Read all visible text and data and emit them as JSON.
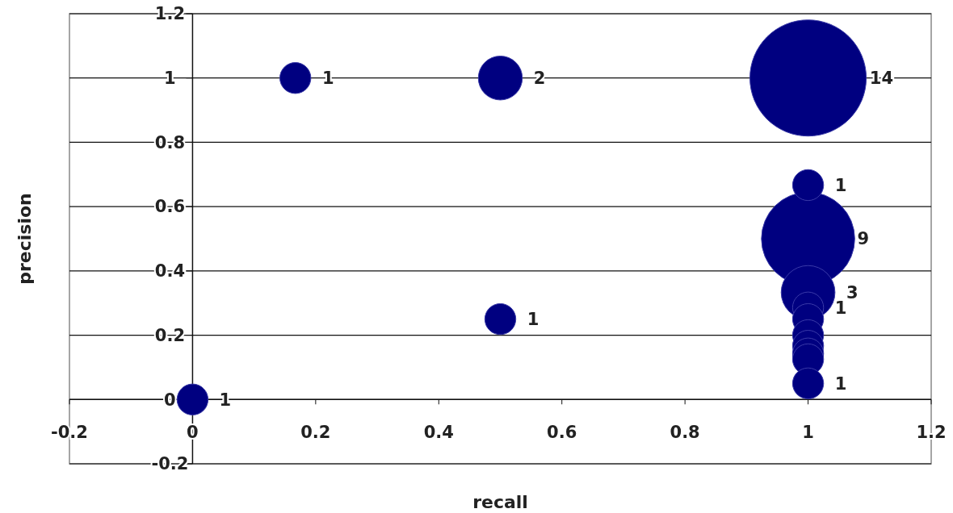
{
  "chart_data": {
    "type": "bubble",
    "xlabel": "recall",
    "ylabel": "precision",
    "x": [
      0,
      0.167,
      0.5,
      1,
      1,
      1,
      1,
      1,
      1,
      1,
      1,
      1,
      1,
      0.5,
      1
    ],
    "values": [
      0,
      1,
      1,
      1,
      0.667,
      0.5,
      0.333,
      0.286,
      0.25,
      0.2,
      0.167,
      0.143,
      0.125,
      0.25,
      0.05
    ],
    "sizes": [
      0.071,
      0.071,
      0.143,
      1,
      0.071,
      0.643,
      0.214,
      0.071,
      0.071,
      0.071,
      0.071,
      0.071,
      0.071,
      0.071,
      0.071
    ],
    "annotations": [
      {
        "text": "1",
        "x": 0,
        "y": 0
      },
      {
        "text": "1",
        "x": 0.167,
        "y": 1
      },
      {
        "text": "2",
        "x": 0.5,
        "y": 1
      },
      {
        "text": "14",
        "x": 1.1,
        "y": 1
      },
      {
        "text": "1",
        "x": 1,
        "y": 0.667
      },
      {
        "text": "9",
        "x": 1.08,
        "y": 0.5
      },
      {
        "text": "3",
        "x": 1,
        "y": 0.333
      },
      {
        "text": "1",
        "x": 1,
        "y": 0.286
      },
      {
        "text": "1",
        "x": 0.5,
        "y": 0.25
      },
      {
        "text": "1",
        "x": 1,
        "y": 0.05
      }
    ],
    "color": "#000080",
    "xlim": [
      -0.2,
      1.2
    ],
    "xticks": [
      -0.2,
      0,
      0.2,
      0.4,
      0.6,
      0.8,
      1,
      1.2
    ],
    "ylim": [
      -0.2,
      1.2
    ],
    "yticks": [
      -0.2,
      0,
      0.2,
      0.4,
      0.6,
      0.8,
      1,
      1.2
    ],
    "grid": "y"
  }
}
